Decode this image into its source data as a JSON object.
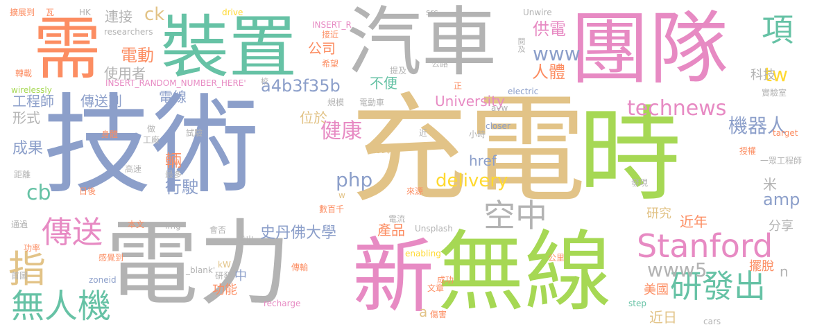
{
  "palette": {
    "blue": "#8c9fca",
    "tan": "#e2c387",
    "green": "#a6d854",
    "grey": "#b3b3b3",
    "pink": "#e78ac3",
    "teal": "#66c2a5",
    "orange": "#fc8d62",
    "yellow": "#ffd92f"
  },
  "words": [
    {
      "text": "技術",
      "color": "#8c9fca",
      "weight": 1.0
    },
    {
      "text": "充電",
      "color": "#e2c387",
      "weight": 0.98
    },
    {
      "text": "時",
      "color": "#a6d854",
      "weight": 0.85
    },
    {
      "text": "電力",
      "color": "#b3b3b3",
      "weight": 0.7
    },
    {
      "text": "無線",
      "color": "#a6d854",
      "weight": 0.62
    },
    {
      "text": "新",
      "color": "#e78ac3",
      "weight": 0.58
    },
    {
      "text": "團隊",
      "color": "#e78ac3",
      "weight": 0.5
    },
    {
      "text": "汽車",
      "color": "#b3b3b3",
      "weight": 0.48
    },
    {
      "text": "裝置",
      "color": "#66c2a5",
      "weight": 0.45
    },
    {
      "text": "需",
      "color": "#fc8d62",
      "weight": 0.42
    },
    {
      "text": "Stanford",
      "color": "#e78ac3",
      "weight": 0.3
    },
    {
      "text": "研發出",
      "color": "#66c2a5",
      "weight": 0.26
    },
    {
      "text": "空中",
      "color": "#b3b3b3",
      "weight": 0.26
    },
    {
      "text": "無人機",
      "color": "#66c2a5",
      "weight": 0.22
    },
    {
      "text": "傳送",
      "color": "#e78ac3",
      "weight": 0.22
    },
    {
      "text": "指",
      "color": "#e2c387",
      "weight": 0.22
    },
    {
      "text": "項",
      "color": "#66c2a5",
      "weight": 0.2
    },
    {
      "text": "technews",
      "color": "#e78ac3",
      "weight": 0.15
    },
    {
      "text": "www5",
      "color": "#b3b3b3",
      "weight": 0.15
    },
    {
      "text": "delivery",
      "color": "#ffd92f",
      "weight": 0.13
    },
    {
      "text": "健康",
      "color": "#e78ac3",
      "weight": 0.13
    },
    {
      "text": "機器人",
      "color": "#8c9fca",
      "weight": 0.13
    },
    {
      "text": "php",
      "color": "#8c9fca",
      "weight": 0.13
    },
    {
      "text": "www",
      "color": "#8c9fca",
      "weight": 0.12
    },
    {
      "text": "電動",
      "color": "#fc8d62",
      "weight": 0.11
    },
    {
      "text": "ck",
      "color": "#e2c387",
      "weight": 0.11
    },
    {
      "text": "cb",
      "color": "#66c2a5",
      "weight": 0.12
    },
    {
      "text": "人體",
      "color": "#fc8d62",
      "weight": 0.11
    },
    {
      "text": "供電",
      "color": "#e78ac3",
      "weight": 0.1
    },
    {
      "text": "tw",
      "color": "#ffd92f",
      "weight": 0.1
    },
    {
      "text": "amp",
      "color": "#8c9fca",
      "weight": 0.1
    },
    {
      "text": "a4b3f35b",
      "color": "#8c9fca",
      "weight": 0.1
    },
    {
      "text": "行駛",
      "color": "#8c9fca",
      "weight": 0.1
    },
    {
      "text": "史丹佛大學",
      "color": "#8c9fca",
      "weight": 0.09
    },
    {
      "text": "University",
      "color": "#e78ac3",
      "weight": 0.09
    },
    {
      "text": "成果",
      "color": "#8c9fca",
      "weight": 0.09
    },
    {
      "text": "位於",
      "color": "#e2c387",
      "weight": 0.08
    },
    {
      "text": "連接",
      "color": "#b3b3b3",
      "weight": 0.08
    },
    {
      "text": "公司",
      "color": "#fc8d62",
      "weight": 0.08
    },
    {
      "text": "使用者",
      "color": "#b3b3b3",
      "weight": 0.08
    },
    {
      "text": "電線",
      "color": "#8c9fca",
      "weight": 0.08
    },
    {
      "text": "工程師",
      "color": "#8c9fca",
      "weight": 0.08
    },
    {
      "text": "傳送到",
      "color": "#8c9fca",
      "weight": 0.08
    },
    {
      "text": "形式",
      "color": "#b3b3b3",
      "weight": 0.08
    },
    {
      "text": "輛",
      "color": "#fc8d62",
      "weight": 0.08
    },
    {
      "text": "不便",
      "color": "#66c2a5",
      "weight": 0.07
    },
    {
      "text": "href",
      "color": "#8c9fca",
      "weight": 0.07
    },
    {
      "text": "產品",
      "color": "#fc8d62",
      "weight": 0.07
    },
    {
      "text": "米",
      "color": "#b3b3b3",
      "weight": 0.07
    },
    {
      "text": "科技",
      "color": "#b3b3b3",
      "weight": 0.07
    },
    {
      "text": "研究",
      "color": "#e2c387",
      "weight": 0.07
    },
    {
      "text": "近年",
      "color": "#fc8d62",
      "weight": 0.07
    },
    {
      "text": "分享",
      "color": "#b3b3b3",
      "weight": 0.06
    },
    {
      "text": "擺脫",
      "color": "#fc8d62",
      "weight": 0.06
    },
    {
      "text": "美國",
      "color": "#fc8d62",
      "weight": 0.06
    },
    {
      "text": "近日",
      "color": "#e2c387",
      "weight": 0.06
    },
    {
      "text": "功能",
      "color": "#fc8d62",
      "weight": 0.06
    },
    {
      "text": "中",
      "color": "#8c9fca",
      "weight": 0.06
    },
    {
      "text": "n",
      "color": "#b3b3b3",
      "weight": 0.05
    },
    {
      "text": "a",
      "color": "#e2c387",
      "weight": 0.05
    },
    {
      "text": "Unwire",
      "color": "#b3b3b3",
      "weight": 0.03
    },
    {
      "text": "researchers",
      "color": "#b3b3b3",
      "weight": 0.03
    },
    {
      "text": "INSERT_R",
      "color": "#e78ac3",
      "weight": 0.03
    },
    {
      "text": "INSERT_RANDOM_NUMBER_HERE'",
      "color": "#e78ac3",
      "weight": 0.03
    },
    {
      "text": "wirelessly",
      "color": "#a6d854",
      "weight": 0.03
    },
    {
      "text": "_blank'",
      "color": "#b3b3b3",
      "weight": 0.03
    },
    {
      "text": "electric",
      "color": "#8c9fca",
      "weight": 0.03
    },
    {
      "text": "drive",
      "color": "#ffd92f",
      "weight": 0.03
    },
    {
      "text": "src",
      "color": "#b3b3b3",
      "weight": 0.03
    },
    {
      "text": "closer",
      "color": "#8c9fca",
      "weight": 0.03
    },
    {
      "text": "target",
      "color": "#fc8d62",
      "weight": 0.03
    },
    {
      "text": "Unsplash",
      "color": "#b3b3b3",
      "weight": 0.03
    },
    {
      "text": "enabling",
      "color": "#ffd92f",
      "weight": 0.03
    },
    {
      "text": "recharge",
      "color": "#e78ac3",
      "weight": 0.03
    },
    {
      "text": "zoneid",
      "color": "#8c9fca",
      "weight": 0.03
    },
    {
      "text": "cars",
      "color": "#b3b3b3",
      "weight": 0.03
    },
    {
      "text": "step",
      "color": "#66c2a5",
      "weight": 0.03
    },
    {
      "text": "avw",
      "color": "#b3b3b3",
      "weight": 0.02
    },
    {
      "text": "HK",
      "color": "#b3b3b3",
      "weight": 0.02
    },
    {
      "text": "img",
      "color": "#b3b3b3",
      "weight": 0.02
    },
    {
      "text": "kW",
      "color": "#e2c387",
      "weight": 0.02
    },
    {
      "text": "w",
      "color": "#e2c387",
      "weight": 0.02
    },
    {
      "text": "擴展到",
      "color": "#fc8d62",
      "weight": 0.02
    },
    {
      "text": "瓦",
      "color": "#fc8d62",
      "weight": 0.02
    },
    {
      "text": "轉載",
      "color": "#fc8d62",
      "weight": 0.02
    },
    {
      "text": "接近",
      "color": "#fc8d62",
      "weight": 0.02
    },
    {
      "text": "希望",
      "color": "#fc8d62",
      "weight": 0.02
    },
    {
      "text": "提及",
      "color": "#b3b3b3",
      "weight": 0.02
    },
    {
      "text": "公路",
      "color": "#b3b3b3",
      "weight": 0.02
    },
    {
      "text": "閱及",
      "color": "#b3b3b3",
      "weight": 0.02
    },
    {
      "text": "校",
      "color": "#b3b3b3",
      "weight": 0.02
    },
    {
      "text": "正",
      "color": "#fc8d62",
      "weight": 0.02
    },
    {
      "text": "實驗室",
      "color": "#b3b3b3",
      "weight": 0.02
    },
    {
      "text": "規模",
      "color": "#b3b3b3",
      "weight": 0.02
    },
    {
      "text": "電動車",
      "color": "#b3b3b3",
      "weight": 0.02
    },
    {
      "text": "身體",
      "color": "#fc8d62",
      "weight": 0.02
    },
    {
      "text": "做",
      "color": "#b3b3b3",
      "weight": 0.02
    },
    {
      "text": "工廠",
      "color": "#b3b3b3",
      "weight": 0.02
    },
    {
      "text": "試驗",
      "color": "#b3b3b3",
      "weight": 0.02
    },
    {
      "text": "近",
      "color": "#b3b3b3",
      "weight": 0.02
    },
    {
      "text": "小時",
      "color": "#b3b3b3",
      "weight": 0.02
    },
    {
      "text": "授權",
      "color": "#fc8d62",
      "weight": 0.02
    },
    {
      "text": "方式",
      "color": "#e2c387",
      "weight": 0.02
    },
    {
      "text": "距離",
      "color": "#b3b3b3",
      "weight": 0.02
    },
    {
      "text": "高速",
      "color": "#b3b3b3",
      "weight": 0.02
    },
    {
      "text": "最多",
      "color": "#b3b3b3",
      "weight": 0.02
    },
    {
      "text": "一眾工程師",
      "color": "#b3b3b3",
      "weight": 0.02
    },
    {
      "text": "日後",
      "color": "#fc8d62",
      "weight": 0.02
    },
    {
      "text": "來源",
      "color": "#fc8d62",
      "weight": 0.02
    },
    {
      "text": "發現",
      "color": "#b3b3b3",
      "weight": 0.02
    },
    {
      "text": "通過",
      "color": "#b3b3b3",
      "weight": 0.02
    },
    {
      "text": "數百千",
      "color": "#fc8d62",
      "weight": 0.02
    },
    {
      "text": "本文",
      "color": "#fc8d62",
      "weight": 0.02
    },
    {
      "text": "電流",
      "color": "#b3b3b3",
      "weight": 0.02
    },
    {
      "text": "功率",
      "color": "#fc8d62",
      "weight": 0.02
    },
    {
      "text": "會否",
      "color": "#b3b3b3",
      "weight": 0.02
    },
    {
      "text": "指出",
      "color": "#b3b3b3",
      "weight": 0.02
    },
    {
      "text": "首圖",
      "color": "#b3b3b3",
      "weight": 0.02
    },
    {
      "text": "感覺到",
      "color": "#fc8d62",
      "weight": 0.02
    },
    {
      "text": "公里",
      "color": "#fc8d62",
      "weight": 0.02
    },
    {
      "text": "研發",
      "color": "#b3b3b3",
      "weight": 0.02
    },
    {
      "text": "傳輸",
      "color": "#fc8d62",
      "weight": 0.02
    },
    {
      "text": "成功",
      "color": "#fc8d62",
      "weight": 0.02
    },
    {
      "text": "文章",
      "color": "#fc8d62",
      "weight": 0.02
    },
    {
      "text": "傷害",
      "color": "#fc8d62",
      "weight": 0.02
    }
  ]
}
